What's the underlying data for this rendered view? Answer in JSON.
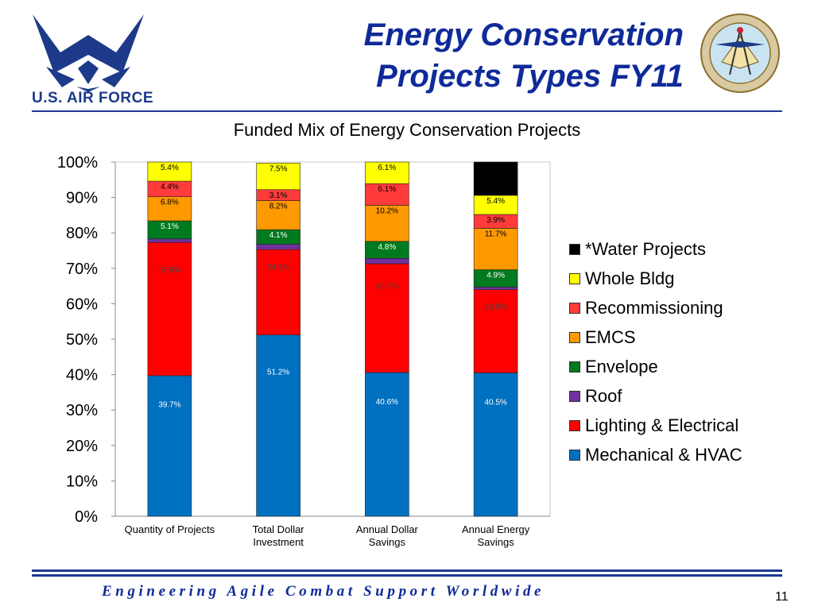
{
  "header": {
    "title_line1": "Energy Conservation",
    "title_line2": "Projects Types FY11",
    "logo_left_text": "U.S. AIR FORCE"
  },
  "chart_data": {
    "type": "bar",
    "stacked": true,
    "title": "Funded Mix of Energy Conservation Projects",
    "categories": [
      [
        "Quantity of Projects"
      ],
      [
        "Total Dollar",
        "Investment"
      ],
      [
        "Annual Dollar",
        "Savings"
      ],
      [
        "Annual Energy",
        "Savings"
      ]
    ],
    "ylim": [
      0,
      100
    ],
    "yticks": [
      "0%",
      "10%",
      "20%",
      "30%",
      "40%",
      "50%",
      "60%",
      "70%",
      "80%",
      "90%",
      "100%"
    ],
    "grid": false,
    "legend_position": "right",
    "series": [
      {
        "name": "Mechanical & HVAC",
        "color": "#0070c0",
        "label_color": "#ffffff",
        "values": [
          39.7,
          51.2,
          40.6,
          40.5
        ],
        "labels": [
          "39.7%",
          "51.2%",
          "40.6%",
          "40.5%"
        ]
      },
      {
        "name": "Lighting & Electrical",
        "color": "#ff0000",
        "label_color": "#444444",
        "values": [
          37.6,
          24.1,
          30.7,
          23.5
        ],
        "labels": [
          "37.6%",
          "24.1%",
          "30.7%",
          "23.5%"
        ]
      },
      {
        "name": "Roof",
        "color": "#7030a0",
        "label_color": "#000000",
        "values": [
          1.0,
          1.5,
          1.5,
          0.7
        ],
        "labels": [
          "",
          "",
          "",
          ""
        ]
      },
      {
        "name": "Envelope",
        "color": "#007a1e",
        "label_color": "#ffffff",
        "values": [
          5.1,
          4.1,
          4.8,
          4.9
        ],
        "labels": [
          "5.1%",
          "4.1%",
          "4.8%",
          "4.9%"
        ]
      },
      {
        "name": "EMCS",
        "color": "#ff9900",
        "label_color": "#000000",
        "values": [
          6.8,
          8.2,
          10.2,
          11.7
        ],
        "labels": [
          "6.8%",
          "8.2%",
          "10.2%",
          "11.7%"
        ]
      },
      {
        "name": "Recommissioning",
        "color": "#ff3b3b",
        "label_color": "#000000",
        "values": [
          4.4,
          3.1,
          6.1,
          3.9
        ],
        "labels": [
          "4.4%",
          "3.1%",
          "6.1%",
          "3.9%"
        ]
      },
      {
        "name": "Whole Bldg",
        "color": "#ffff00",
        "label_color": "#000000",
        "values": [
          5.4,
          7.5,
          6.1,
          5.4
        ],
        "labels": [
          "5.4%",
          "7.5%",
          "6.1%",
          "5.4%"
        ]
      },
      {
        "name": "*Water Projects",
        "color": "#000000",
        "label_color": "#ffffff",
        "values": [
          0,
          0,
          0,
          9.4
        ],
        "labels": [
          "",
          "",
          "",
          ""
        ]
      }
    ]
  },
  "footer": {
    "tagline": "Engineering Agile Combat Support Worldwide",
    "page_number": "11"
  }
}
